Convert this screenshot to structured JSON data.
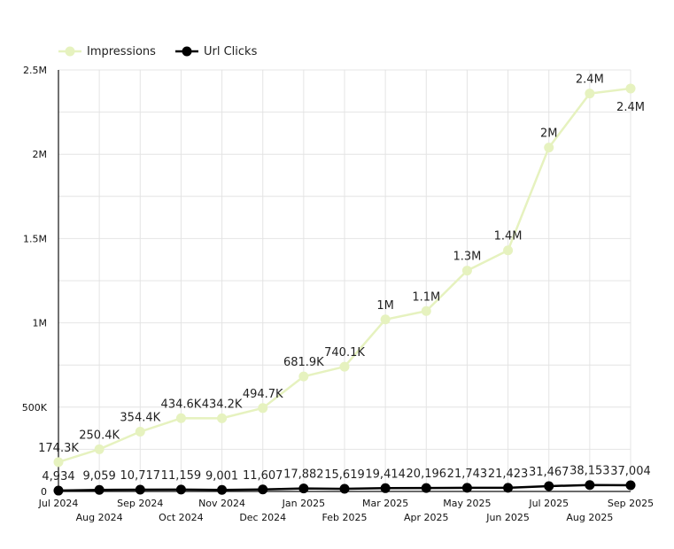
{
  "chart_data": {
    "type": "line",
    "title": "",
    "xlabel": "",
    "ylabel": "",
    "categories": [
      "Jul 2024",
      "Aug 2024",
      "Sep 2024",
      "Oct 2024",
      "Nov 2024",
      "Dec 2024",
      "Jan 2025",
      "Feb 2025",
      "Mar 2025",
      "Apr 2025",
      "May 2025",
      "Jun 2025",
      "Jul 2025",
      "Aug 2025",
      "Sep 2025"
    ],
    "ylim": [
      0,
      2500000
    ],
    "yticks": [
      {
        "value": 0,
        "label": "0"
      },
      {
        "value": 500000,
        "label": "500K"
      },
      {
        "value": 1000000,
        "label": "1M"
      },
      {
        "value": 1500000,
        "label": "1.5M"
      },
      {
        "value": 2000000,
        "label": "2M"
      },
      {
        "value": 2500000,
        "label": "2.5M"
      }
    ],
    "grid": true,
    "legend_position": "top-left",
    "series": [
      {
        "name": "Impressions",
        "color": "#e6f2bf",
        "values": [
          174300,
          250400,
          354400,
          434600,
          434200,
          494700,
          681900,
          740100,
          1020000,
          1070000,
          1310000,
          1430000,
          2040000,
          2360000,
          2390000
        ],
        "labels": [
          "174.3K",
          "250.4K",
          "354.4K",
          "434.6K",
          "434.2K",
          "494.7K",
          "681.9K",
          "740.1K",
          "1M",
          "1.1M",
          "1.3M",
          "1.4M",
          "2M",
          "2.4M",
          "2.4M"
        ]
      },
      {
        "name": "Url Clicks",
        "color": "#000000",
        "values": [
          4934,
          9059,
          10717,
          11159,
          9001,
          11607,
          17882,
          15619,
          19414,
          20196,
          21743,
          21423,
          31467,
          38153,
          37004
        ],
        "labels": [
          "4,934",
          "9,059",
          "10,717",
          "11,159",
          "9,001",
          "11,607",
          "17,882",
          "15,619",
          "19,414",
          "20,196",
          "21,743",
          "21,423",
          "31,467",
          "38,153",
          "37,004"
        ]
      }
    ]
  }
}
